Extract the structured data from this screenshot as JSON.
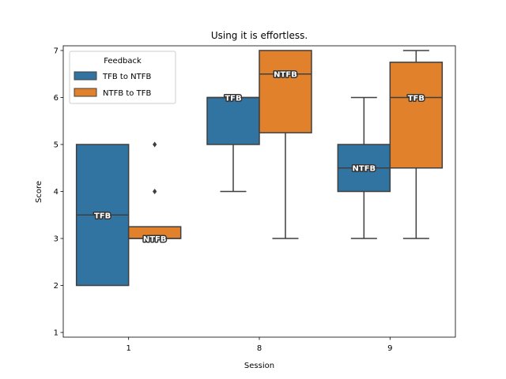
{
  "chart_data": {
    "type": "box",
    "title": "Using it is effortless.",
    "xlabel": "Session",
    "ylabel": "Score",
    "categories": [
      "1",
      "8",
      "9"
    ],
    "ylim": [
      0.9,
      7.1
    ],
    "yticks": [
      "1",
      "2",
      "3",
      "4",
      "5",
      "6",
      "7"
    ],
    "legend": {
      "title": "Feedback",
      "placement": "top-left"
    },
    "series": [
      {
        "name": "TFB to NTFB",
        "color": "#3274a1",
        "boxes": [
          {
            "category": "1",
            "whislo": 2,
            "q1": 2,
            "med": 3.5,
            "q3": 5,
            "whishi": 5,
            "fliers": [],
            "label": "TFB"
          },
          {
            "category": "8",
            "whislo": 4,
            "q1": 5,
            "med": 6,
            "q3": 6,
            "whishi": 6,
            "fliers": [],
            "label": "TFB"
          },
          {
            "category": "9",
            "whislo": 3,
            "q1": 4,
            "med": 4.5,
            "q3": 5,
            "whishi": 6,
            "fliers": [],
            "label": "NTFB"
          }
        ]
      },
      {
        "name": "NTFB to TFB",
        "color": "#e1812c",
        "boxes": [
          {
            "category": "1",
            "whislo": 3,
            "q1": 3,
            "med": 3,
            "q3": 3.25,
            "whishi": 3.25,
            "fliers": [
              4,
              5
            ],
            "label": "NTFB"
          },
          {
            "category": "8",
            "whislo": 3,
            "q1": 5.25,
            "med": 6.5,
            "q3": 7,
            "whishi": 7,
            "fliers": [],
            "label": "NTFB"
          },
          {
            "category": "9",
            "whislo": 3,
            "q1": 4.5,
            "med": 6,
            "q3": 6.75,
            "whishi": 7,
            "fliers": [],
            "label": "TFB"
          }
        ]
      }
    ]
  }
}
